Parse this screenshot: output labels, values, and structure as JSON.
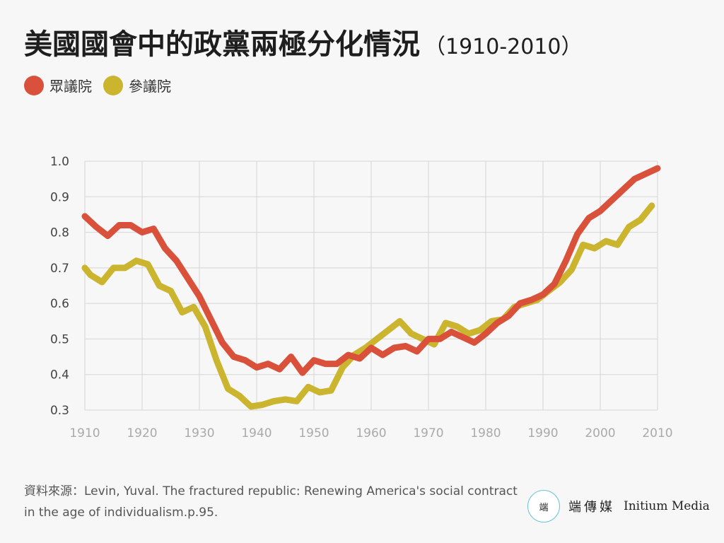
{
  "title": {
    "main": "美國國會中的政黨兩極分化情況",
    "range": "（1910-2010）"
  },
  "legend": [
    {
      "label": "眾議院",
      "color": "#d9513a"
    },
    {
      "label": "參議院",
      "color": "#cbb52e"
    }
  ],
  "chart_data": {
    "type": "line",
    "ylim": [
      0.3,
      1.0
    ],
    "xlim": [
      1910,
      2010
    ],
    "yticks": [
      "0.3",
      "0.4",
      "0.5",
      "0.6",
      "0.7",
      "0.8",
      "0.9",
      "1.0"
    ],
    "xticks": [
      "1910",
      "1920",
      "1930",
      "1940",
      "1950",
      "1960",
      "1970",
      "1980",
      "1990",
      "2000",
      "2010"
    ],
    "grid": true,
    "series": [
      {
        "name": "眾議院",
        "color": "#d9513a",
        "x": [
          1910,
          1912,
          1914,
          1916,
          1918,
          1920,
          1922,
          1924,
          1926,
          1928,
          1930,
          1932,
          1934,
          1936,
          1938,
          1940,
          1942,
          1944,
          1946,
          1948,
          1950,
          1952,
          1954,
          1956,
          1958,
          1960,
          1962,
          1964,
          1966,
          1968,
          1970,
          1972,
          1974,
          1976,
          1978,
          1980,
          1982,
          1984,
          1986,
          1988,
          1990,
          1992,
          1994,
          1996,
          1998,
          2000,
          2002,
          2004,
          2006,
          2008,
          2010
        ],
        "values": [
          0.845,
          0.815,
          0.79,
          0.82,
          0.82,
          0.8,
          0.81,
          0.755,
          0.72,
          0.67,
          0.62,
          0.555,
          0.49,
          0.45,
          0.44,
          0.42,
          0.43,
          0.415,
          0.45,
          0.405,
          0.44,
          0.43,
          0.43,
          0.455,
          0.445,
          0.475,
          0.455,
          0.475,
          0.48,
          0.465,
          0.5,
          0.5,
          0.52,
          0.505,
          0.49,
          0.515,
          0.545,
          0.565,
          0.6,
          0.61,
          0.625,
          0.655,
          0.72,
          0.795,
          0.84,
          0.86,
          0.89,
          0.92,
          0.95,
          0.965,
          0.98
        ]
      },
      {
        "name": "參議院",
        "color": "#cbb52e",
        "x": [
          1910,
          1911,
          1913,
          1915,
          1917,
          1919,
          1921,
          1923,
          1925,
          1927,
          1929,
          1931,
          1933,
          1935,
          1937,
          1939,
          1941,
          1943,
          1945,
          1947,
          1949,
          1951,
          1953,
          1955,
          1957,
          1959,
          1961,
          1963,
          1965,
          1967,
          1969,
          1971,
          1973,
          1975,
          1977,
          1979,
          1981,
          1983,
          1985,
          1987,
          1989,
          1991,
          1993,
          1995,
          1997,
          1999,
          2001,
          2003,
          2005,
          2007,
          2009
        ],
        "values": [
          0.7,
          0.68,
          0.66,
          0.7,
          0.7,
          0.72,
          0.71,
          0.65,
          0.635,
          0.575,
          0.59,
          0.535,
          0.44,
          0.36,
          0.34,
          0.31,
          0.315,
          0.325,
          0.33,
          0.325,
          0.365,
          0.35,
          0.355,
          0.42,
          0.455,
          0.475,
          0.5,
          0.525,
          0.55,
          0.515,
          0.5,
          0.485,
          0.545,
          0.535,
          0.515,
          0.525,
          0.55,
          0.555,
          0.59,
          0.6,
          0.61,
          0.635,
          0.66,
          0.695,
          0.765,
          0.755,
          0.775,
          0.765,
          0.815,
          0.835,
          0.875
        ]
      }
    ]
  },
  "source": {
    "text": "資料來源：Levin, Yuval. The fractured republic: Renewing America's social contract in the age of individualism.p.95."
  },
  "brand": {
    "logo_glyph": "端",
    "name_cn": "端傳媒",
    "name_en": "Initium Media"
  }
}
